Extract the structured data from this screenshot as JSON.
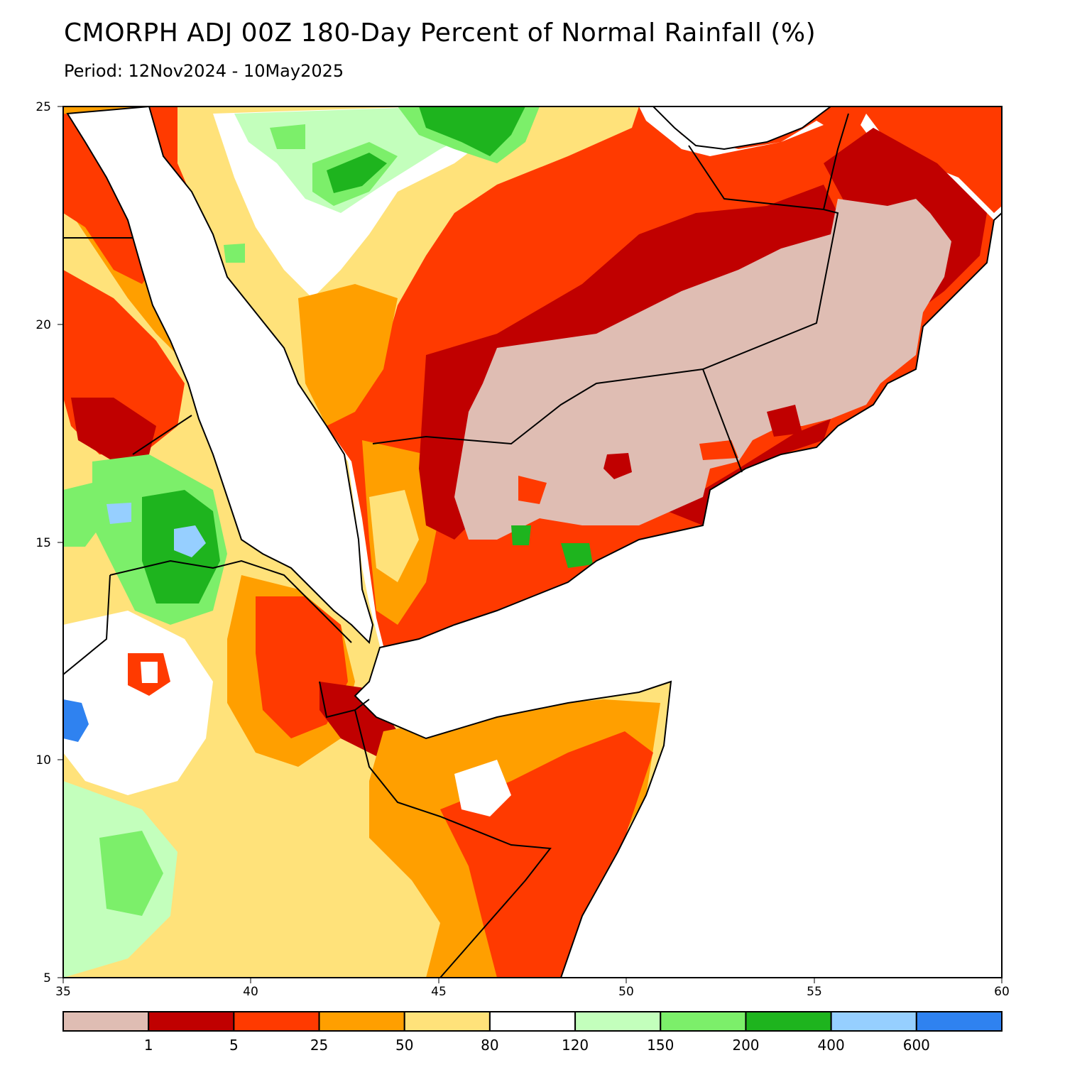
{
  "header": {
    "title": "CMORPH ADJ 00Z 180-Day Percent of Normal Rainfall (%)",
    "period": "Period: 12Nov2024 - 10May2025"
  },
  "map": {
    "lon_range": [
      35,
      60
    ],
    "lat_range": [
      5,
      25
    ],
    "x_ticks": [
      "35",
      "40",
      "45",
      "50",
      "55",
      "60"
    ],
    "y_ticks": [
      "5",
      "10",
      "15",
      "20",
      "25"
    ]
  },
  "colorbar": {
    "colors": [
      "#dfbdb3",
      "#c00000",
      "#ff3a00",
      "#ff9f00",
      "#ffe27a",
      "#ffffff",
      "#c3ffbc",
      "#7cef6a",
      "#1eb41e",
      "#96cfff",
      "#2f82f0"
    ],
    "labels": [
      "1",
      "5",
      "25",
      "50",
      "80",
      "120",
      "150",
      "200",
      "400",
      "600"
    ]
  },
  "legend_colors": {
    "below_1": "#dfbdb3",
    "1_5": "#c00000",
    "5_25": "#ff3a00",
    "25_50": "#ff9f00",
    "50_80": "#ffe27a",
    "80_120": "#ffffff",
    "120_150": "#c3ffbc",
    "150_200": "#7cef6a",
    "200_400": "#1eb41e",
    "400_600": "#96cfff",
    "above_600": "#2f82f0"
  }
}
